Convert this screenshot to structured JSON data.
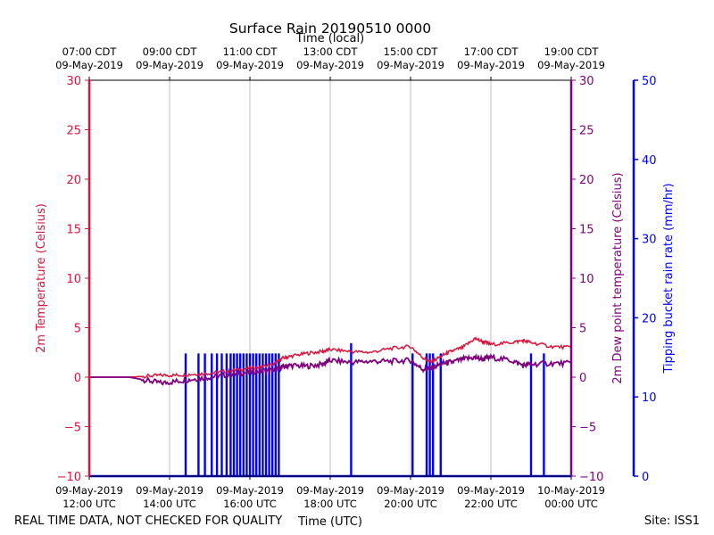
{
  "chart_data": {
    "type": "line",
    "title": "Surface Rain 20190510 0000",
    "xlabel_bottom": "Time (UTC)",
    "xlabel_top": "Time (local)",
    "x_ticks_bottom": [
      [
        "09-May-2019",
        "12:00 UTC"
      ],
      [
        "09-May-2019",
        "14:00 UTC"
      ],
      [
        "09-May-2019",
        "16:00 UTC"
      ],
      [
        "09-May-2019",
        "18:00 UTC"
      ],
      [
        "09-May-2019",
        "20:00 UTC"
      ],
      [
        "09-May-2019",
        "22:00 UTC"
      ],
      [
        "10-May-2019",
        "00:00 UTC"
      ]
    ],
    "x_ticks_top": [
      [
        "07:00 CDT",
        "09-May-2019"
      ],
      [
        "09:00 CDT",
        "09-May-2019"
      ],
      [
        "11:00 CDT",
        "09-May-2019"
      ],
      [
        "13:00 CDT",
        "09-May-2019"
      ],
      [
        "15:00 CDT",
        "09-May-2019"
      ],
      [
        "17:00 CDT",
        "09-May-2019"
      ],
      [
        "19:00 CDT",
        "09-May-2019"
      ]
    ],
    "xlim_hours_utc": [
      12,
      24
    ],
    "y_left": {
      "label": "2m Temperature (Celsius)",
      "lim": [
        -10,
        30
      ],
      "ticks": [
        "−10",
        "−5",
        "0",
        "5",
        "10",
        "15",
        "20",
        "25",
        "30"
      ],
      "color": "#dc143c"
    },
    "y_right1": {
      "label": "2m Dew point temperature (Celsius)",
      "lim": [
        -10,
        30
      ],
      "ticks": [
        "−10",
        "−5",
        "0",
        "5",
        "10",
        "15",
        "20",
        "25",
        "30"
      ],
      "color": "#800080"
    },
    "y_right2": {
      "label": "Tipping bucket rain rate (mm/hr)",
      "lim": [
        0,
        50
      ],
      "ticks": [
        "0",
        "10",
        "20",
        "30",
        "40",
        "50"
      ],
      "color": "#0000ff"
    },
    "grid": "x-only",
    "series": [
      {
        "name": "2m Temperature (Celsius)",
        "axis": "left",
        "color": "#dc143c",
        "x_hours_utc": [
          12.0,
          13.0,
          13.4,
          13.8,
          14.2,
          14.6,
          15.0,
          15.4,
          15.8,
          16.2,
          16.6,
          16.8,
          17.0,
          17.4,
          17.8,
          18.0,
          18.5,
          19.0,
          19.5,
          20.0,
          20.3,
          20.5,
          20.8,
          21.0,
          21.3,
          21.6,
          21.8,
          22.0,
          22.5,
          22.8,
          23.0,
          23.5,
          24.0
        ],
        "values": [
          0.0,
          0.0,
          0.1,
          0.2,
          0.2,
          0.3,
          0.4,
          0.6,
          0.8,
          1.0,
          1.3,
          1.9,
          2.1,
          2.4,
          2.6,
          2.8,
          2.6,
          2.5,
          2.9,
          3.1,
          2.0,
          1.5,
          2.2,
          2.6,
          3.0,
          3.9,
          3.6,
          3.3,
          3.5,
          3.7,
          3.5,
          3.1,
          3.0
        ]
      },
      {
        "name": "2m Dew point temperature (Celsius)",
        "axis": "right1",
        "color": "#800080",
        "x_hours_utc": [
          12.0,
          13.0,
          13.4,
          13.8,
          14.2,
          14.6,
          15.0,
          15.4,
          15.8,
          16.2,
          16.6,
          16.8,
          17.0,
          17.4,
          17.8,
          18.0,
          18.5,
          19.0,
          19.5,
          20.0,
          20.3,
          20.5,
          20.8,
          21.0,
          21.3,
          21.6,
          21.8,
          22.0,
          22.5,
          22.8,
          23.0,
          23.5,
          24.0
        ],
        "values": [
          0.0,
          0.0,
          -0.3,
          -0.6,
          -0.4,
          -0.2,
          0.0,
          0.2,
          0.4,
          0.6,
          0.7,
          1.0,
          1.2,
          1.1,
          1.3,
          1.7,
          1.5,
          1.6,
          1.6,
          1.7,
          0.8,
          0.9,
          1.4,
          1.5,
          1.8,
          2.0,
          1.8,
          2.0,
          1.7,
          1.2,
          1.3,
          1.4,
          1.4
        ]
      },
      {
        "name": "Tipping bucket rain rate (mm/hr)",
        "axis": "right2",
        "color": "#0000ff",
        "spikes": [
          {
            "t": 14.4,
            "v": 15.5
          },
          {
            "t": 14.72,
            "v": 15.5
          },
          {
            "t": 14.88,
            "v": 15.5
          },
          {
            "t": 15.05,
            "v": 15.5
          },
          {
            "t": 15.18,
            "v": 15.5
          },
          {
            "t": 15.3,
            "v": 15.5
          },
          {
            "t": 15.42,
            "v": 15.5
          },
          {
            "t": 15.52,
            "v": 15.5
          },
          {
            "t": 15.6,
            "v": 15.5
          },
          {
            "t": 15.68,
            "v": 15.5
          },
          {
            "t": 15.76,
            "v": 15.5
          },
          {
            "t": 15.84,
            "v": 15.5
          },
          {
            "t": 15.92,
            "v": 15.5
          },
          {
            "t": 16.0,
            "v": 15.5
          },
          {
            "t": 16.08,
            "v": 15.5
          },
          {
            "t": 16.16,
            "v": 15.5
          },
          {
            "t": 16.24,
            "v": 15.5
          },
          {
            "t": 16.32,
            "v": 15.5
          },
          {
            "t": 16.4,
            "v": 15.5
          },
          {
            "t": 16.48,
            "v": 15.5
          },
          {
            "t": 16.56,
            "v": 15.5
          },
          {
            "t": 16.64,
            "v": 15.5
          },
          {
            "t": 16.72,
            "v": 15.5
          },
          {
            "t": 18.52,
            "v": 16.8
          },
          {
            "t": 20.05,
            "v": 15.5
          },
          {
            "t": 20.4,
            "v": 15.5
          },
          {
            "t": 20.48,
            "v": 15.5
          },
          {
            "t": 20.56,
            "v": 15.5
          },
          {
            "t": 20.75,
            "v": 15.5
          },
          {
            "t": 23.0,
            "v": 15.5
          },
          {
            "t": 23.32,
            "v": 15.5
          }
        ]
      }
    ]
  },
  "footer": {
    "disclaimer": "REAL TIME DATA, NOT CHECKED FOR QUALITY",
    "site": "Site: ISS1"
  }
}
